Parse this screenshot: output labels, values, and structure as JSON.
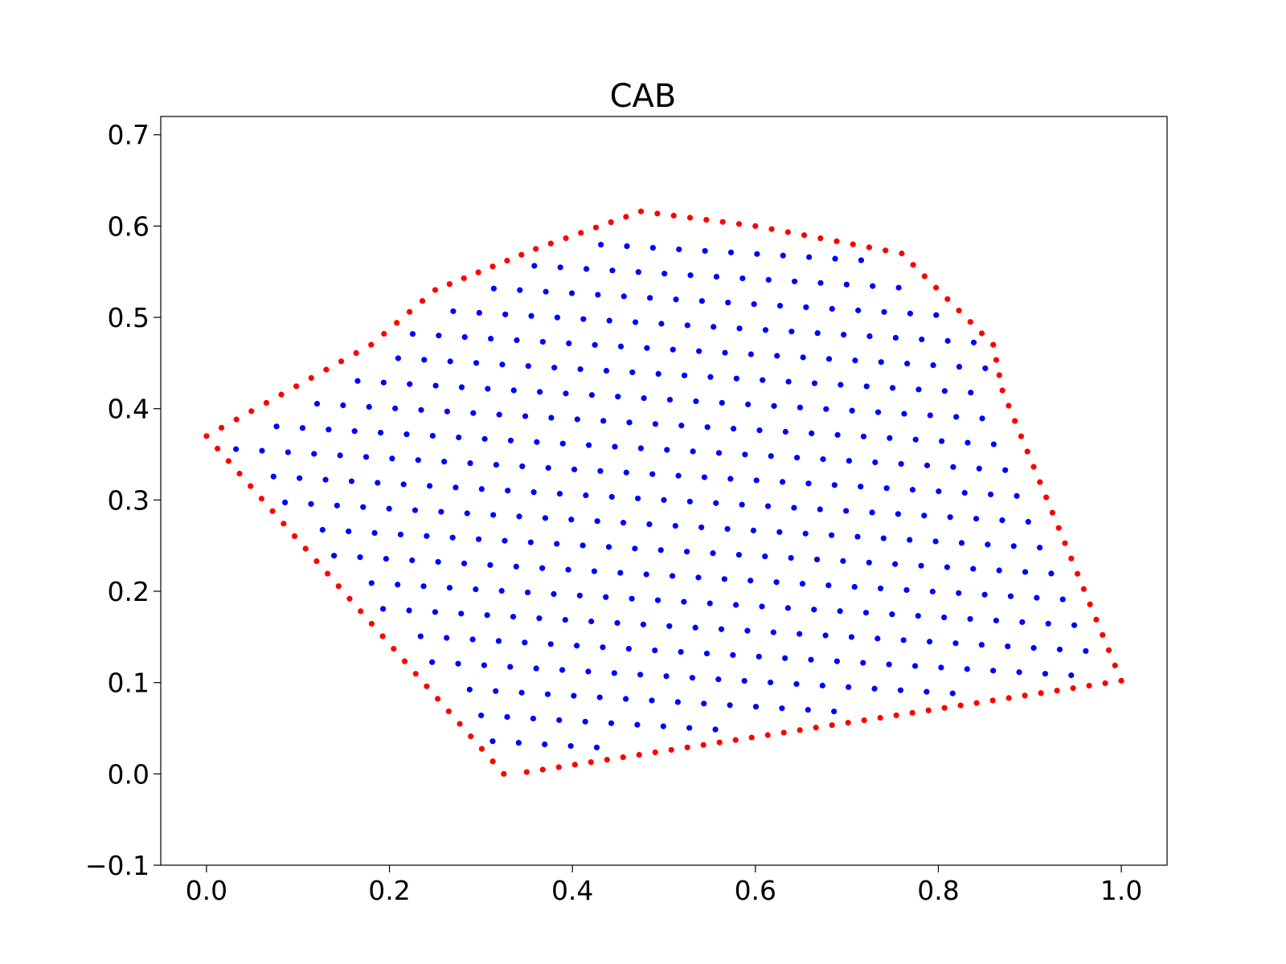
{
  "chart_data": {
    "type": "scatter",
    "title": "CAB",
    "xlabel": "",
    "ylabel": "",
    "xlim": [
      -0.05,
      1.05
    ],
    "ylim": [
      -0.1,
      0.72
    ],
    "xticks": [
      0.0,
      0.2,
      0.4,
      0.6,
      0.8,
      1.0
    ],
    "xtick_labels": [
      "0.0",
      "0.2",
      "0.4",
      "0.6",
      "0.8",
      "1.0"
    ],
    "yticks": [
      -0.1,
      0.0,
      0.1,
      0.2,
      0.3,
      0.4,
      0.5,
      0.6,
      0.7
    ],
    "ytick_labels": [
      "−0.1",
      "0.0",
      "0.1",
      "0.2",
      "0.3",
      "0.4",
      "0.5",
      "0.6",
      "0.7"
    ],
    "grid": false,
    "colors": {
      "boundary": "#ff0000",
      "interior": "#0000ff"
    },
    "boundary_polygon": [
      [
        0.0,
        0.37
      ],
      [
        0.18,
        0.47
      ],
      [
        0.25,
        0.53
      ],
      [
        0.36,
        0.575
      ],
      [
        0.475,
        0.616
      ],
      [
        0.6,
        0.6
      ],
      [
        0.76,
        0.57
      ],
      [
        0.86,
        0.47
      ],
      [
        0.87,
        0.42
      ],
      [
        1.0,
        0.102
      ],
      [
        0.35,
        0.002
      ],
      [
        0.325,
        0.0
      ]
    ],
    "series": [
      {
        "marker": "boundary",
        "spacing": 0.018
      },
      {
        "marker": "interior",
        "spacing": 0.0285,
        "row_spacing": 0.0275
      }
    ]
  }
}
